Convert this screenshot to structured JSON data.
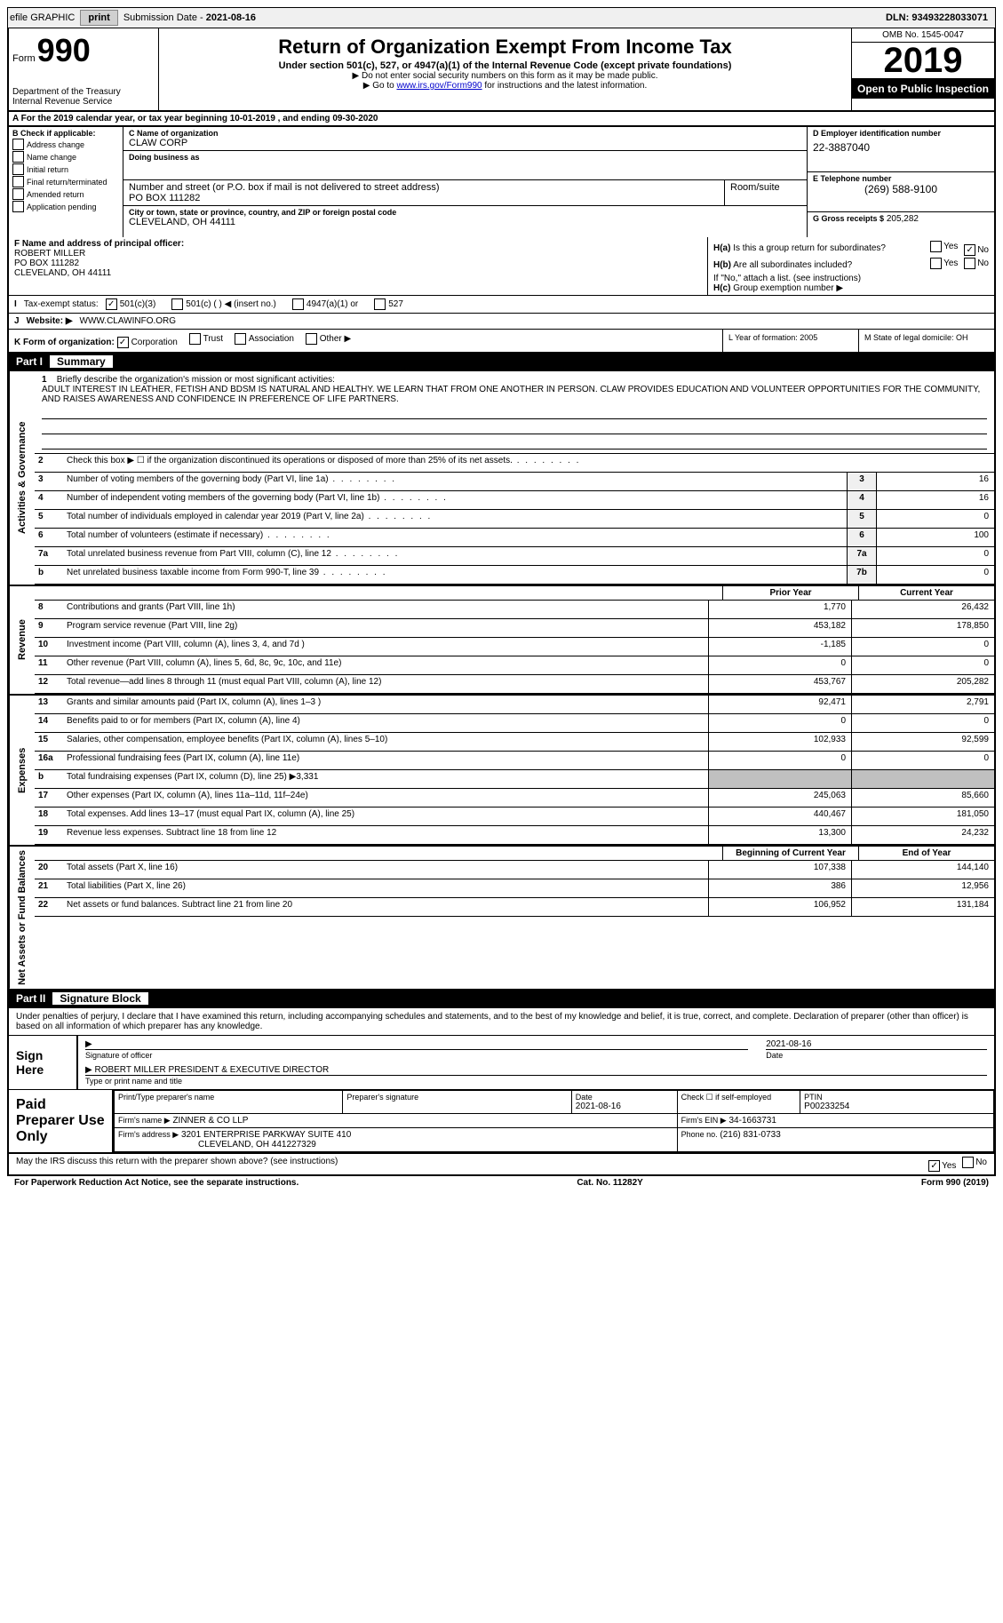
{
  "top": {
    "efile": "efile GRAPHIC",
    "print": "print",
    "sub_label": "Submission Date - ",
    "sub_date": "2021-08-16",
    "dln_label": "DLN: ",
    "dln": "93493228033071"
  },
  "header": {
    "form_label": "Form",
    "form_num": "990",
    "dept": "Department of the Treasury\nInternal Revenue Service",
    "title": "Return of Organization Exempt From Income Tax",
    "sub1": "Under section 501(c), 527, or 4947(a)(1) of the Internal Revenue Code (except private foundations)",
    "sub2": "▶ Do not enter social security numbers on this form as it may be made public.",
    "sub3_pre": "▶ Go to ",
    "sub3_link": "www.irs.gov/Form990",
    "sub3_post": " for instructions and the latest information.",
    "omb": "OMB No. 1545-0047",
    "year": "2019",
    "inspect": "Open to Public Inspection"
  },
  "section_a": "A For the 2019 calendar year, or tax year beginning 10-01-2019    , and ending 09-30-2020",
  "col_b": {
    "title": "B Check if applicable:",
    "items": [
      "Address change",
      "Name change",
      "Initial return",
      "Final return/terminated",
      "Amended return",
      "Application pending"
    ]
  },
  "col_c": {
    "name_label": "C Name of organization",
    "name": "CLAW CORP",
    "dba_label": "Doing business as",
    "dba": "",
    "addr_label": "Number and street (or P.O. box if mail is not delivered to street address)",
    "addr": "PO BOX 111282",
    "room_label": "Room/suite",
    "room": "",
    "city_label": "City or town, state or province, country, and ZIP or foreign postal code",
    "city": "CLEVELAND, OH  44111"
  },
  "col_d": {
    "ein_label": "D Employer identification number",
    "ein": "22-3887040",
    "tel_label": "E Telephone number",
    "tel": "(269) 588-9100",
    "gross_label": "G Gross receipts $",
    "gross": "205,282"
  },
  "f": {
    "label": "F Name and address of principal officer:",
    "name": "ROBERT MILLER",
    "addr": "PO BOX 111282",
    "city": "CLEVELAND, OH  44111"
  },
  "h": {
    "a_label": "H(a)",
    "a_text": "Is this a group return for subordinates?",
    "a_yes": "Yes",
    "a_no": "No",
    "b_label": "H(b)",
    "b_text": "Are all subordinates included?",
    "b_note": "If \"No,\" attach a list. (see instructions)",
    "c_label": "H(c)",
    "c_text": "Group exemption number ▶"
  },
  "i": {
    "label": "I",
    "text": "Tax-exempt status:",
    "opt1": "501(c)(3)",
    "opt2": "501(c) (  ) ◀ (insert no.)",
    "opt3": "4947(a)(1) or",
    "opt4": "527"
  },
  "j": {
    "label": "J",
    "text": "Website: ▶",
    "url": "WWW.CLAWINFO.ORG"
  },
  "k": {
    "label": "K Form of organization:",
    "corp": "Corporation",
    "trust": "Trust",
    "assoc": "Association",
    "other": "Other ▶",
    "l": "L Year of formation: 2005",
    "m": "M State of legal domicile: OH"
  },
  "part1": {
    "label": "Part I",
    "title": "Summary"
  },
  "side_labels": {
    "gov": "Activities & Governance",
    "rev": "Revenue",
    "exp": "Expenses",
    "net": "Net Assets or Fund Balances"
  },
  "mission": {
    "num": "1",
    "label": "Briefly describe the organization's mission or most significant activities:",
    "text": "ADULT INTEREST IN LEATHER, FETISH AND BDSM IS NATURAL AND HEALTHY. WE LEARN THAT FROM ONE ANOTHER IN PERSON. CLAW PROVIDES EDUCATION AND VOLUNTEER OPPORTUNITIES FOR THE COMMUNITY, AND RAISES AWARENESS AND CONFIDENCE IN PREFERENCE OF LIFE PARTNERS."
  },
  "gov_lines": [
    {
      "num": "2",
      "desc": "Check this box ▶ ☐  if the organization discontinued its operations or disposed of more than 25% of its net assets.",
      "cell": "",
      "val": ""
    },
    {
      "num": "3",
      "desc": "Number of voting members of the governing body (Part VI, line 1a)",
      "cell": "3",
      "val": "16"
    },
    {
      "num": "4",
      "desc": "Number of independent voting members of the governing body (Part VI, line 1b)",
      "cell": "4",
      "val": "16"
    },
    {
      "num": "5",
      "desc": "Total number of individuals employed in calendar year 2019 (Part V, line 2a)",
      "cell": "5",
      "val": "0"
    },
    {
      "num": "6",
      "desc": "Total number of volunteers (estimate if necessary)",
      "cell": "6",
      "val": "100"
    },
    {
      "num": "7a",
      "desc": "Total unrelated business revenue from Part VIII, column (C), line 12",
      "cell": "7a",
      "val": "0"
    },
    {
      "num": "b",
      "desc": "Net unrelated business taxable income from Form 990-T, line 39",
      "cell": "7b",
      "val": "0"
    }
  ],
  "two_col_hdr": {
    "prior": "Prior Year",
    "current": "Current Year"
  },
  "rev_lines": [
    {
      "num": "8",
      "desc": "Contributions and grants (Part VIII, line 1h)",
      "p": "1,770",
      "c": "26,432"
    },
    {
      "num": "9",
      "desc": "Program service revenue (Part VIII, line 2g)",
      "p": "453,182",
      "c": "178,850"
    },
    {
      "num": "10",
      "desc": "Investment income (Part VIII, column (A), lines 3, 4, and 7d )",
      "p": "-1,185",
      "c": "0"
    },
    {
      "num": "11",
      "desc": "Other revenue (Part VIII, column (A), lines 5, 6d, 8c, 9c, 10c, and 11e)",
      "p": "0",
      "c": "0"
    },
    {
      "num": "12",
      "desc": "Total revenue—add lines 8 through 11 (must equal Part VIII, column (A), line 12)",
      "p": "453,767",
      "c": "205,282"
    }
  ],
  "exp_lines": [
    {
      "num": "13",
      "desc": "Grants and similar amounts paid (Part IX, column (A), lines 1–3 )",
      "p": "92,471",
      "c": "2,791"
    },
    {
      "num": "14",
      "desc": "Benefits paid to or for members (Part IX, column (A), line 4)",
      "p": "0",
      "c": "0"
    },
    {
      "num": "15",
      "desc": "Salaries, other compensation, employee benefits (Part IX, column (A), lines 5–10)",
      "p": "102,933",
      "c": "92,599"
    },
    {
      "num": "16a",
      "desc": "Professional fundraising fees (Part IX, column (A), line 11e)",
      "p": "0",
      "c": "0"
    },
    {
      "num": "b",
      "desc": "Total fundraising expenses (Part IX, column (D), line 25) ▶3,331",
      "p": "",
      "c": "",
      "shade": true
    },
    {
      "num": "17",
      "desc": "Other expenses (Part IX, column (A), lines 11a–11d, 11f–24e)",
      "p": "245,063",
      "c": "85,660"
    },
    {
      "num": "18",
      "desc": "Total expenses. Add lines 13–17 (must equal Part IX, column (A), line 25)",
      "p": "440,467",
      "c": "181,050"
    },
    {
      "num": "19",
      "desc": "Revenue less expenses. Subtract line 18 from line 12",
      "p": "13,300",
      "c": "24,232"
    }
  ],
  "net_hdr": {
    "begin": "Beginning of Current Year",
    "end": "End of Year"
  },
  "net_lines": [
    {
      "num": "20",
      "desc": "Total assets (Part X, line 16)",
      "p": "107,338",
      "c": "144,140"
    },
    {
      "num": "21",
      "desc": "Total liabilities (Part X, line 26)",
      "p": "386",
      "c": "12,956"
    },
    {
      "num": "22",
      "desc": "Net assets or fund balances. Subtract line 21 from line 20",
      "p": "106,952",
      "c": "131,184"
    }
  ],
  "part2": {
    "label": "Part II",
    "title": "Signature Block"
  },
  "sig": {
    "penalties": "Under penalties of perjury, I declare that I have examined this return, including accompanying schedules and statements, and to the best of my knowledge and belief, it is true, correct, and complete. Declaration of preparer (other than officer) is based on all information of which preparer has any knowledge.",
    "sign_here": "Sign Here",
    "sig_officer": "Signature of officer",
    "date_label": "Date",
    "date": "2021-08-16",
    "name": "ROBERT MILLER  PRESIDENT & EXECUTIVE DIRECTOR",
    "name_label": "Type or print name and title"
  },
  "paid": {
    "title": "Paid Preparer Use Only",
    "prep_name_label": "Print/Type preparer's name",
    "prep_sig_label": "Preparer's signature",
    "date_label": "Date",
    "date": "2021-08-16",
    "check_label": "Check ☐ if self-employed",
    "ptin_label": "PTIN",
    "ptin": "P00233254",
    "firm_name_label": "Firm's name      ▶",
    "firm_name": "ZINNER & CO LLP",
    "firm_ein_label": "Firm's EIN ▶",
    "firm_ein": "34-1663731",
    "firm_addr_label": "Firm's address ▶",
    "firm_addr": "3201 ENTERPRISE PARKWAY SUITE 410",
    "firm_city": "CLEVELAND, OH  441227329",
    "phone_label": "Phone no.",
    "phone": "(216) 831-0733"
  },
  "discuss": {
    "text": "May the IRS discuss this return with the preparer shown above? (see instructions)",
    "yes": "Yes",
    "no": "No"
  },
  "footer": {
    "left": "For Paperwork Reduction Act Notice, see the separate instructions.",
    "mid": "Cat. No. 11282Y",
    "right": "Form 990 (2019)"
  }
}
